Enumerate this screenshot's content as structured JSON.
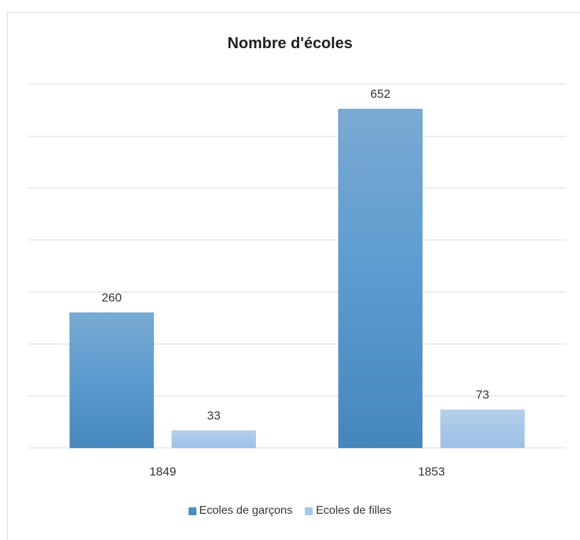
{
  "chart_data": {
    "type": "bar",
    "title": "Nombre d'écoles",
    "categories": [
      "1849",
      "1853"
    ],
    "series": [
      {
        "name": "Ecoles de garçons",
        "values": [
          260,
          652
        ],
        "color": "#4a8ec4"
      },
      {
        "name": "Ecoles de filles",
        "values": [
          33,
          73
        ],
        "color": "#a6c6e8"
      }
    ],
    "ylim": [
      0,
      700
    ],
    "grid": true,
    "legend_position": "bottom",
    "data_labels": true
  }
}
